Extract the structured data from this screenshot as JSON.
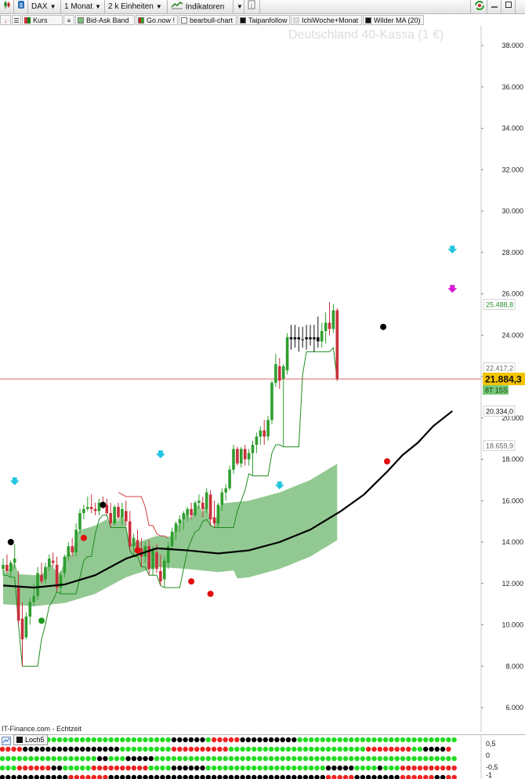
{
  "toolbar": {
    "symbol": "DAX",
    "period": "1 Monat",
    "units": "2 k Einheiten",
    "indicators": "Indikatoren",
    "info_icon": "info-icon"
  },
  "legend": [
    {
      "label": "Kurs",
      "color": "#c8303a"
    },
    {
      "label": "Bid-Ask Band",
      "color": "#7cbf7c"
    },
    {
      "label": "Go.now !",
      "color": "#d22020"
    },
    {
      "label": "bearbull-chart",
      "color": "#ffffff"
    },
    {
      "label": "Taipanfollow",
      "color": "#111111"
    },
    {
      "label": "IchiWoche+Monat",
      "color": "#dddddd"
    },
    {
      "label": "Wilder MA (20)",
      "color": "#111111"
    }
  ],
  "title": "Deutschland 40-Kassa (1 €)",
  "credit": "IT-Finance.com - Echtzeit",
  "price_tags": {
    "current": "21.884,3",
    "countdown": "8T 15S",
    "upper_band": "25.488,8",
    "ref_line": "22.417,2",
    "wilder_ma": "20.334,0",
    "cloud_low": "18.659,9"
  },
  "indicator_panel": {
    "label": "Loch5",
    "ticks": [
      "0,5",
      "0",
      "-0,5",
      "-1"
    ],
    "colors": {
      "g": "#22dd22",
      "r": "#ee2222",
      "b": "#000000"
    },
    "rows": [
      "gggggggggggggggggggggggbbbbbbgrrrrrbbbbbbbbbbgggggggggggggggggggggggggggggggggg",
      "rrrrbbbbbbbbbbbbbbbbbgggggggggrrrrrrrrrrggggggggggggggggggggggggrrrrrrrrggbbbbr",
      "gggggggggggggggggbbgggbbbbbggggggggggggggggggggggggggggggggggggggggggggggggggggg",
      "gggrrrrrrbbgggggrrrrrrrrrrggggbbbbbbgggggggggggggggggggggbbbbbggggbgggrrrrrrrrrr",
      "bbbbbbbbbbbbrrrrrrrbbbbbbbbbbbbbbbbbbbbbbbbbbbbbbbbbbbbbbrrrrrbbbbbbbbrrrrrrbbrr"
    ]
  },
  "colors": {
    "bull": "#2f9e2f",
    "bear": "#c8303a",
    "cloud": "#86c386",
    "ma": "#000000",
    "signal_up": "#22c6e0",
    "signal_down": "#d81ad8",
    "current_line": "#d05050",
    "current_tag": "#f5c400"
  },
  "chart_data": {
    "type": "candlestick",
    "title": "Deutschland 40-Kassa (1 €)",
    "y_axis": {
      "ticks": [
        "38.000",
        "36.000",
        "34.000",
        "32.000",
        "30.000",
        "28.000",
        "26.000",
        "24.000",
        "22.000",
        "20.000",
        "18.000",
        "16.000",
        "14.000",
        "12.000",
        "10.000",
        "8.000",
        "6.000"
      ],
      "min": 5000,
      "max": 39000
    },
    "candles_ohlc": [
      [
        12700,
        13200,
        12400,
        12900
      ],
      [
        12900,
        13400,
        12500,
        12600
      ],
      [
        12600,
        13100,
        12300,
        13000
      ],
      [
        13000,
        13900,
        12700,
        13200
      ],
      [
        11800,
        12600,
        10000,
        10200
      ],
      [
        10300,
        11100,
        8000,
        9300
      ],
      [
        9400,
        10600,
        9300,
        10400
      ],
      [
        10400,
        11300,
        10000,
        11100
      ],
      [
        11100,
        12000,
        10900,
        11400
      ],
      [
        11400,
        12800,
        11200,
        12500
      ],
      [
        12400,
        13000,
        12000,
        12100
      ],
      [
        12200,
        13000,
        12000,
        12800
      ],
      [
        12800,
        13400,
        12600,
        13200
      ],
      [
        13100,
        13500,
        12800,
        13000
      ],
      [
        12900,
        13300,
        11600,
        11800
      ],
      [
        11800,
        12600,
        11500,
        12400
      ],
      [
        12500,
        13400,
        12300,
        13300
      ],
      [
        13300,
        14000,
        13100,
        13800
      ],
      [
        13800,
        14200,
        13300,
        13500
      ],
      [
        13500,
        14900,
        13300,
        14600
      ],
      [
        14600,
        15600,
        14400,
        15400
      ],
      [
        15400,
        15800,
        15100,
        15600
      ],
      [
        15600,
        16200,
        15500,
        15700
      ],
      [
        15700,
        16300,
        15400,
        15600
      ],
      [
        15600,
        15900,
        15300,
        15500
      ],
      [
        15500,
        16100,
        15300,
        15900
      ],
      [
        15900,
        16200,
        15600,
        15800
      ],
      [
        15800,
        16100,
        15300,
        15400
      ],
      [
        15400,
        15900,
        14700,
        14900
      ],
      [
        14900,
        15800,
        14800,
        15700
      ],
      [
        15700,
        15900,
        15100,
        15200
      ],
      [
        15200,
        15900,
        14800,
        15600
      ],
      [
        15500,
        16000,
        14800,
        15000
      ],
      [
        15000,
        15500,
        13600,
        13800
      ],
      [
        13800,
        14400,
        13300,
        14200
      ],
      [
        14100,
        14600,
        13400,
        13600
      ],
      [
        13700,
        14200,
        12800,
        13300
      ],
      [
        13300,
        14000,
        13000,
        13800
      ],
      [
        13800,
        14100,
        12400,
        12700
      ],
      [
        12700,
        13800,
        12400,
        13600
      ],
      [
        13500,
        13900,
        12500,
        12700
      ],
      [
        12600,
        13400,
        11900,
        12100
      ],
      [
        12200,
        13300,
        11800,
        13100
      ],
      [
        13000,
        14000,
        12700,
        13800
      ],
      [
        13800,
        14700,
        13600,
        14500
      ],
      [
        14500,
        15000,
        14100,
        14900
      ],
      [
        14900,
        15300,
        14500,
        15100
      ],
      [
        15100,
        15500,
        14600,
        15400
      ],
      [
        15300,
        15700,
        15000,
        15600
      ],
      [
        15600,
        15900,
        15100,
        15300
      ],
      [
        15300,
        16000,
        15200,
        15900
      ],
      [
        15900,
        16300,
        15600,
        16000
      ],
      [
        15900,
        16200,
        15200,
        15600
      ],
      [
        15600,
        16600,
        15400,
        16400
      ],
      [
        16300,
        16500,
        14800,
        15100
      ],
      [
        15200,
        16000,
        14700,
        14900
      ],
      [
        14900,
        15900,
        14700,
        15800
      ],
      [
        15800,
        16600,
        15500,
        16400
      ],
      [
        16400,
        16800,
        16000,
        16600
      ],
      [
        16600,
        17700,
        16500,
        17500
      ],
      [
        17500,
        18700,
        17300,
        18500
      ],
      [
        18500,
        18600,
        17700,
        17800
      ],
      [
        17800,
        18600,
        17600,
        18500
      ],
      [
        18500,
        18700,
        17700,
        18000
      ],
      [
        18000,
        18500,
        17700,
        18300
      ],
      [
        18300,
        18900,
        17200,
        18700
      ],
      [
        18700,
        19300,
        18300,
        19100
      ],
      [
        19100,
        19600,
        18700,
        19400
      ],
      [
        19400,
        19900,
        18700,
        19100
      ],
      [
        19100,
        20100,
        18900,
        19900
      ],
      [
        19900,
        21800,
        19700,
        21700
      ],
      [
        21700,
        23100,
        21500,
        22600
      ],
      [
        22500,
        22900,
        21400,
        21800
      ],
      [
        21900,
        22600,
        18600,
        22500
      ],
      [
        22300,
        24100,
        22100,
        23900
      ],
      [
        23900,
        24500,
        23300,
        23800
      ],
      [
        23800,
        24500,
        23400,
        23900
      ],
      [
        23900,
        24400,
        23200,
        23800
      ],
      [
        23800,
        24400,
        23400,
        23800
      ],
      [
        23800,
        24500,
        23300,
        23900
      ],
      [
        23900,
        24500,
        23500,
        23800
      ],
      [
        23800,
        24500,
        23200,
        23900
      ],
      [
        23900,
        24900,
        23400,
        23700
      ],
      [
        23700,
        24600,
        23400,
        24200
      ],
      [
        24200,
        25100,
        23600,
        24600
      ],
      [
        24600,
        25600,
        24000,
        24300
      ],
      [
        24300,
        25500,
        24100,
        25200
      ],
      [
        25200,
        25300,
        21800,
        21900
      ]
    ],
    "wilder_ma": [
      [
        0,
        11900
      ],
      [
        8,
        11800
      ],
      [
        16,
        11950
      ],
      [
        24,
        12400
      ],
      [
        32,
        13200
      ],
      [
        40,
        13700
      ],
      [
        48,
        13600
      ],
      [
        56,
        13450
      ],
      [
        64,
        13600
      ],
      [
        72,
        14000
      ],
      [
        80,
        14600
      ],
      [
        88,
        15500
      ],
      [
        94,
        16300
      ],
      [
        100,
        17400
      ],
      [
        104,
        18200
      ],
      [
        108,
        18800
      ],
      [
        112,
        19600
      ],
      [
        117,
        20334
      ]
    ],
    "price_tag_values": {
      "current": 21884.3,
      "upper_band": 25488.8,
      "ref_line": 22417.2,
      "wilder_ma": 20334.0,
      "cloud_low": 18659.9
    },
    "signals_up_arrow": [
      [
        3,
        16900
      ],
      [
        41,
        18200
      ],
      [
        72,
        16700
      ],
      [
        117,
        28100
      ]
    ],
    "signals_down_arrow": [
      [
        117,
        26200
      ]
    ],
    "dots": [
      {
        "x": 2,
        "v": 14000,
        "c": "black"
      },
      {
        "x": 10,
        "v": 10200,
        "c": "green"
      },
      {
        "x": 21,
        "v": 14200,
        "c": "red"
      },
      {
        "x": 26,
        "v": 15800,
        "c": "black"
      },
      {
        "x": 35,
        "v": 13600,
        "c": "red"
      },
      {
        "x": 49,
        "v": 12100,
        "c": "red"
      },
      {
        "x": 54,
        "v": 11500,
        "c": "red"
      },
      {
        "x": 99,
        "v": 24400,
        "c": "black"
      },
      {
        "x": 100,
        "v": 17900,
        "c": "red"
      }
    ]
  }
}
